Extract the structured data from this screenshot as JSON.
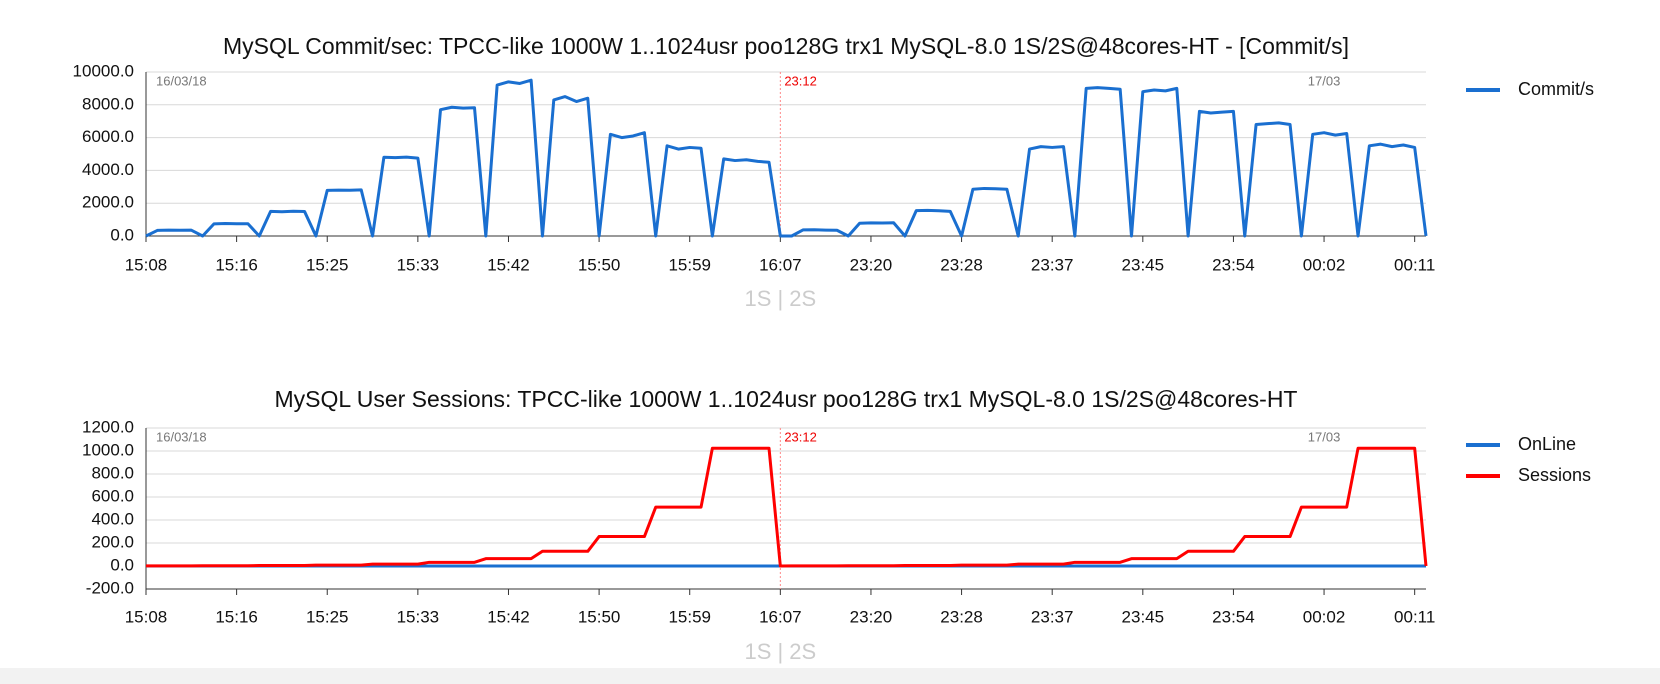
{
  "chart_data": [
    {
      "type": "line",
      "title": "MySQL Commit/sec: TPCC-like 1000W 1..1024usr poo128G trx1 MySQL-8.0 1S/2S@48cores-HT - [Commit/s]",
      "xlabel": "1S | 2S",
      "annotations": [
        "16/03/18",
        "23:12",
        "17/03"
      ],
      "grid": true,
      "legend": "right",
      "categories": [
        "15:08",
        null,
        null,
        null,
        null,
        null,
        null,
        null,
        "15:16",
        null,
        null,
        null,
        null,
        null,
        null,
        null,
        "15:25",
        null,
        null,
        null,
        null,
        null,
        null,
        null,
        "15:33",
        null,
        null,
        null,
        null,
        null,
        null,
        null,
        "15:42",
        null,
        null,
        null,
        null,
        null,
        null,
        null,
        "15:50",
        null,
        null,
        null,
        null,
        null,
        null,
        null,
        "15:59",
        null,
        null,
        null,
        null,
        null,
        null,
        null,
        "16:07",
        null,
        null,
        null,
        null,
        null,
        null,
        null,
        "23:20",
        null,
        null,
        null,
        null,
        null,
        null,
        null,
        "23:28",
        null,
        null,
        null,
        null,
        null,
        null,
        null,
        "23:37",
        null,
        null,
        null,
        null,
        null,
        null,
        null,
        "23:45",
        null,
        null,
        null,
        null,
        null,
        null,
        null,
        "23:54",
        null,
        null,
        null,
        null,
        null,
        null,
        null,
        "00:02",
        null,
        null,
        null,
        null,
        null,
        null,
        null,
        "00:11",
        null
      ],
      "ylim": [
        0,
        10000
      ],
      "yticks": [
        {
          "value": 0,
          "label": "0.0"
        },
        {
          "value": 2000,
          "label": "2000.0"
        },
        {
          "value": 4000,
          "label": "4000.0"
        },
        {
          "value": 6000,
          "label": "6000.0"
        },
        {
          "value": 8000,
          "label": "8000.0"
        },
        {
          "value": 10000,
          "label": "10000.0"
        }
      ],
      "series": [
        {
          "name": "Commit/s",
          "color": "#1a6fd0",
          "values": [
            0,
            340,
            360,
            350,
            355,
            0,
            740,
            760,
            750,
            745,
            0,
            1500,
            1480,
            1510,
            1490,
            0,
            2780,
            2800,
            2790,
            2810,
            0,
            4800,
            4780,
            4810,
            4750,
            0,
            7700,
            7850,
            7800,
            7820,
            0,
            9200,
            9400,
            9300,
            9500,
            0,
            8300,
            8500,
            8200,
            8400,
            0,
            6200,
            6000,
            6100,
            6300,
            0,
            5500,
            5300,
            5400,
            5350,
            0,
            4700,
            4600,
            4650,
            4550,
            4500,
            0,
            0,
            370,
            380,
            360,
            350,
            0,
            780,
            800,
            790,
            810,
            0,
            1550,
            1560,
            1540,
            1500,
            0,
            2850,
            2900,
            2880,
            2850,
            0,
            5300,
            5450,
            5400,
            5450,
            0,
            9000,
            9050,
            9000,
            8950,
            0,
            8800,
            8900,
            8850,
            9000,
            0,
            7600,
            7500,
            7550,
            7600,
            0,
            6800,
            6850,
            6900,
            6800,
            0,
            6200,
            6300,
            6150,
            6250,
            0,
            5500,
            5600,
            5450,
            5550,
            5400,
            0
          ]
        }
      ]
    },
    {
      "type": "line",
      "title": "MySQL User Sessions: TPCC-like 1000W 1..1024usr poo128G trx1 MySQL-8.0 1S/2S@48cores-HT",
      "xlabel": "1S | 2S",
      "annotations": [
        "16/03/18",
        "23:12",
        "17/03"
      ],
      "grid": true,
      "legend": "right",
      "categories": [
        "15:08",
        null,
        null,
        null,
        null,
        null,
        null,
        null,
        "15:16",
        null,
        null,
        null,
        null,
        null,
        null,
        null,
        "15:25",
        null,
        null,
        null,
        null,
        null,
        null,
        null,
        "15:33",
        null,
        null,
        null,
        null,
        null,
        null,
        null,
        "15:42",
        null,
        null,
        null,
        null,
        null,
        null,
        null,
        "15:50",
        null,
        null,
        null,
        null,
        null,
        null,
        null,
        "15:59",
        null,
        null,
        null,
        null,
        null,
        null,
        null,
        "16:07",
        null,
        null,
        null,
        null,
        null,
        null,
        null,
        "23:20",
        null,
        null,
        null,
        null,
        null,
        null,
        null,
        "23:28",
        null,
        null,
        null,
        null,
        null,
        null,
        null,
        "23:37",
        null,
        null,
        null,
        null,
        null,
        null,
        null,
        "23:45",
        null,
        null,
        null,
        null,
        null,
        null,
        null,
        "23:54",
        null,
        null,
        null,
        null,
        null,
        null,
        null,
        "00:02",
        null,
        null,
        null,
        null,
        null,
        null,
        null,
        "00:11",
        null
      ],
      "ylim": [
        -200,
        1200
      ],
      "yticks": [
        {
          "value": -200,
          "label": "-200.0"
        },
        {
          "value": 0,
          "label": "0.0"
        },
        {
          "value": 200,
          "label": "200.0"
        },
        {
          "value": 400,
          "label": "400.0"
        },
        {
          "value": 600,
          "label": "600.0"
        },
        {
          "value": 800,
          "label": "800.0"
        },
        {
          "value": 1000,
          "label": "1000.0"
        },
        {
          "value": 1200,
          "label": "1200.0"
        }
      ],
      "series": [
        {
          "name": "OnLine",
          "color": "#1a6fd0",
          "values": [
            0,
            0,
            0,
            0,
            0,
            0,
            0,
            0,
            0,
            0,
            0,
            0,
            0,
            0,
            0,
            0,
            0,
            0,
            0,
            0,
            0,
            0,
            0,
            0,
            0,
            0,
            0,
            0,
            0,
            0,
            0,
            0,
            0,
            0,
            0,
            0,
            0,
            0,
            0,
            0,
            0,
            0,
            0,
            0,
            0,
            0,
            0,
            0,
            0,
            0,
            0,
            0,
            0,
            0,
            0,
            0,
            0,
            0,
            0,
            0,
            0,
            0,
            0,
            0,
            0,
            0,
            0,
            0,
            0,
            0,
            0,
            0,
            0,
            0,
            0,
            0,
            0,
            0,
            0,
            0,
            0,
            0,
            0,
            0,
            0,
            0,
            0,
            0,
            0,
            0,
            0,
            0,
            0,
            0,
            0,
            0,
            0,
            0,
            0,
            0,
            0,
            0,
            0,
            0,
            0,
            0,
            0,
            0,
            0,
            0,
            0,
            0,
            0,
            0
          ]
        },
        {
          "name": "Sessions",
          "color": "#ff0000",
          "values": [
            1,
            1,
            1,
            1,
            1,
            2,
            2,
            2,
            2,
            2,
            4,
            4,
            4,
            4,
            4,
            8,
            8,
            8,
            8,
            8,
            16,
            16,
            16,
            16,
            16,
            32,
            32,
            32,
            32,
            32,
            64,
            64,
            64,
            64,
            64,
            128,
            128,
            128,
            128,
            128,
            256,
            256,
            256,
            256,
            256,
            512,
            512,
            512,
            512,
            512,
            1024,
            1024,
            1024,
            1024,
            1024,
            1024,
            0,
            1,
            1,
            1,
            1,
            1,
            2,
            2,
            2,
            2,
            2,
            4,
            4,
            4,
            4,
            4,
            8,
            8,
            8,
            8,
            8,
            16,
            16,
            16,
            16,
            16,
            32,
            32,
            32,
            32,
            32,
            64,
            64,
            64,
            64,
            64,
            128,
            128,
            128,
            128,
            128,
            256,
            256,
            256,
            256,
            256,
            512,
            512,
            512,
            512,
            512,
            1024,
            1024,
            1024,
            1024,
            1024,
            1024,
            0
          ]
        }
      ]
    }
  ]
}
